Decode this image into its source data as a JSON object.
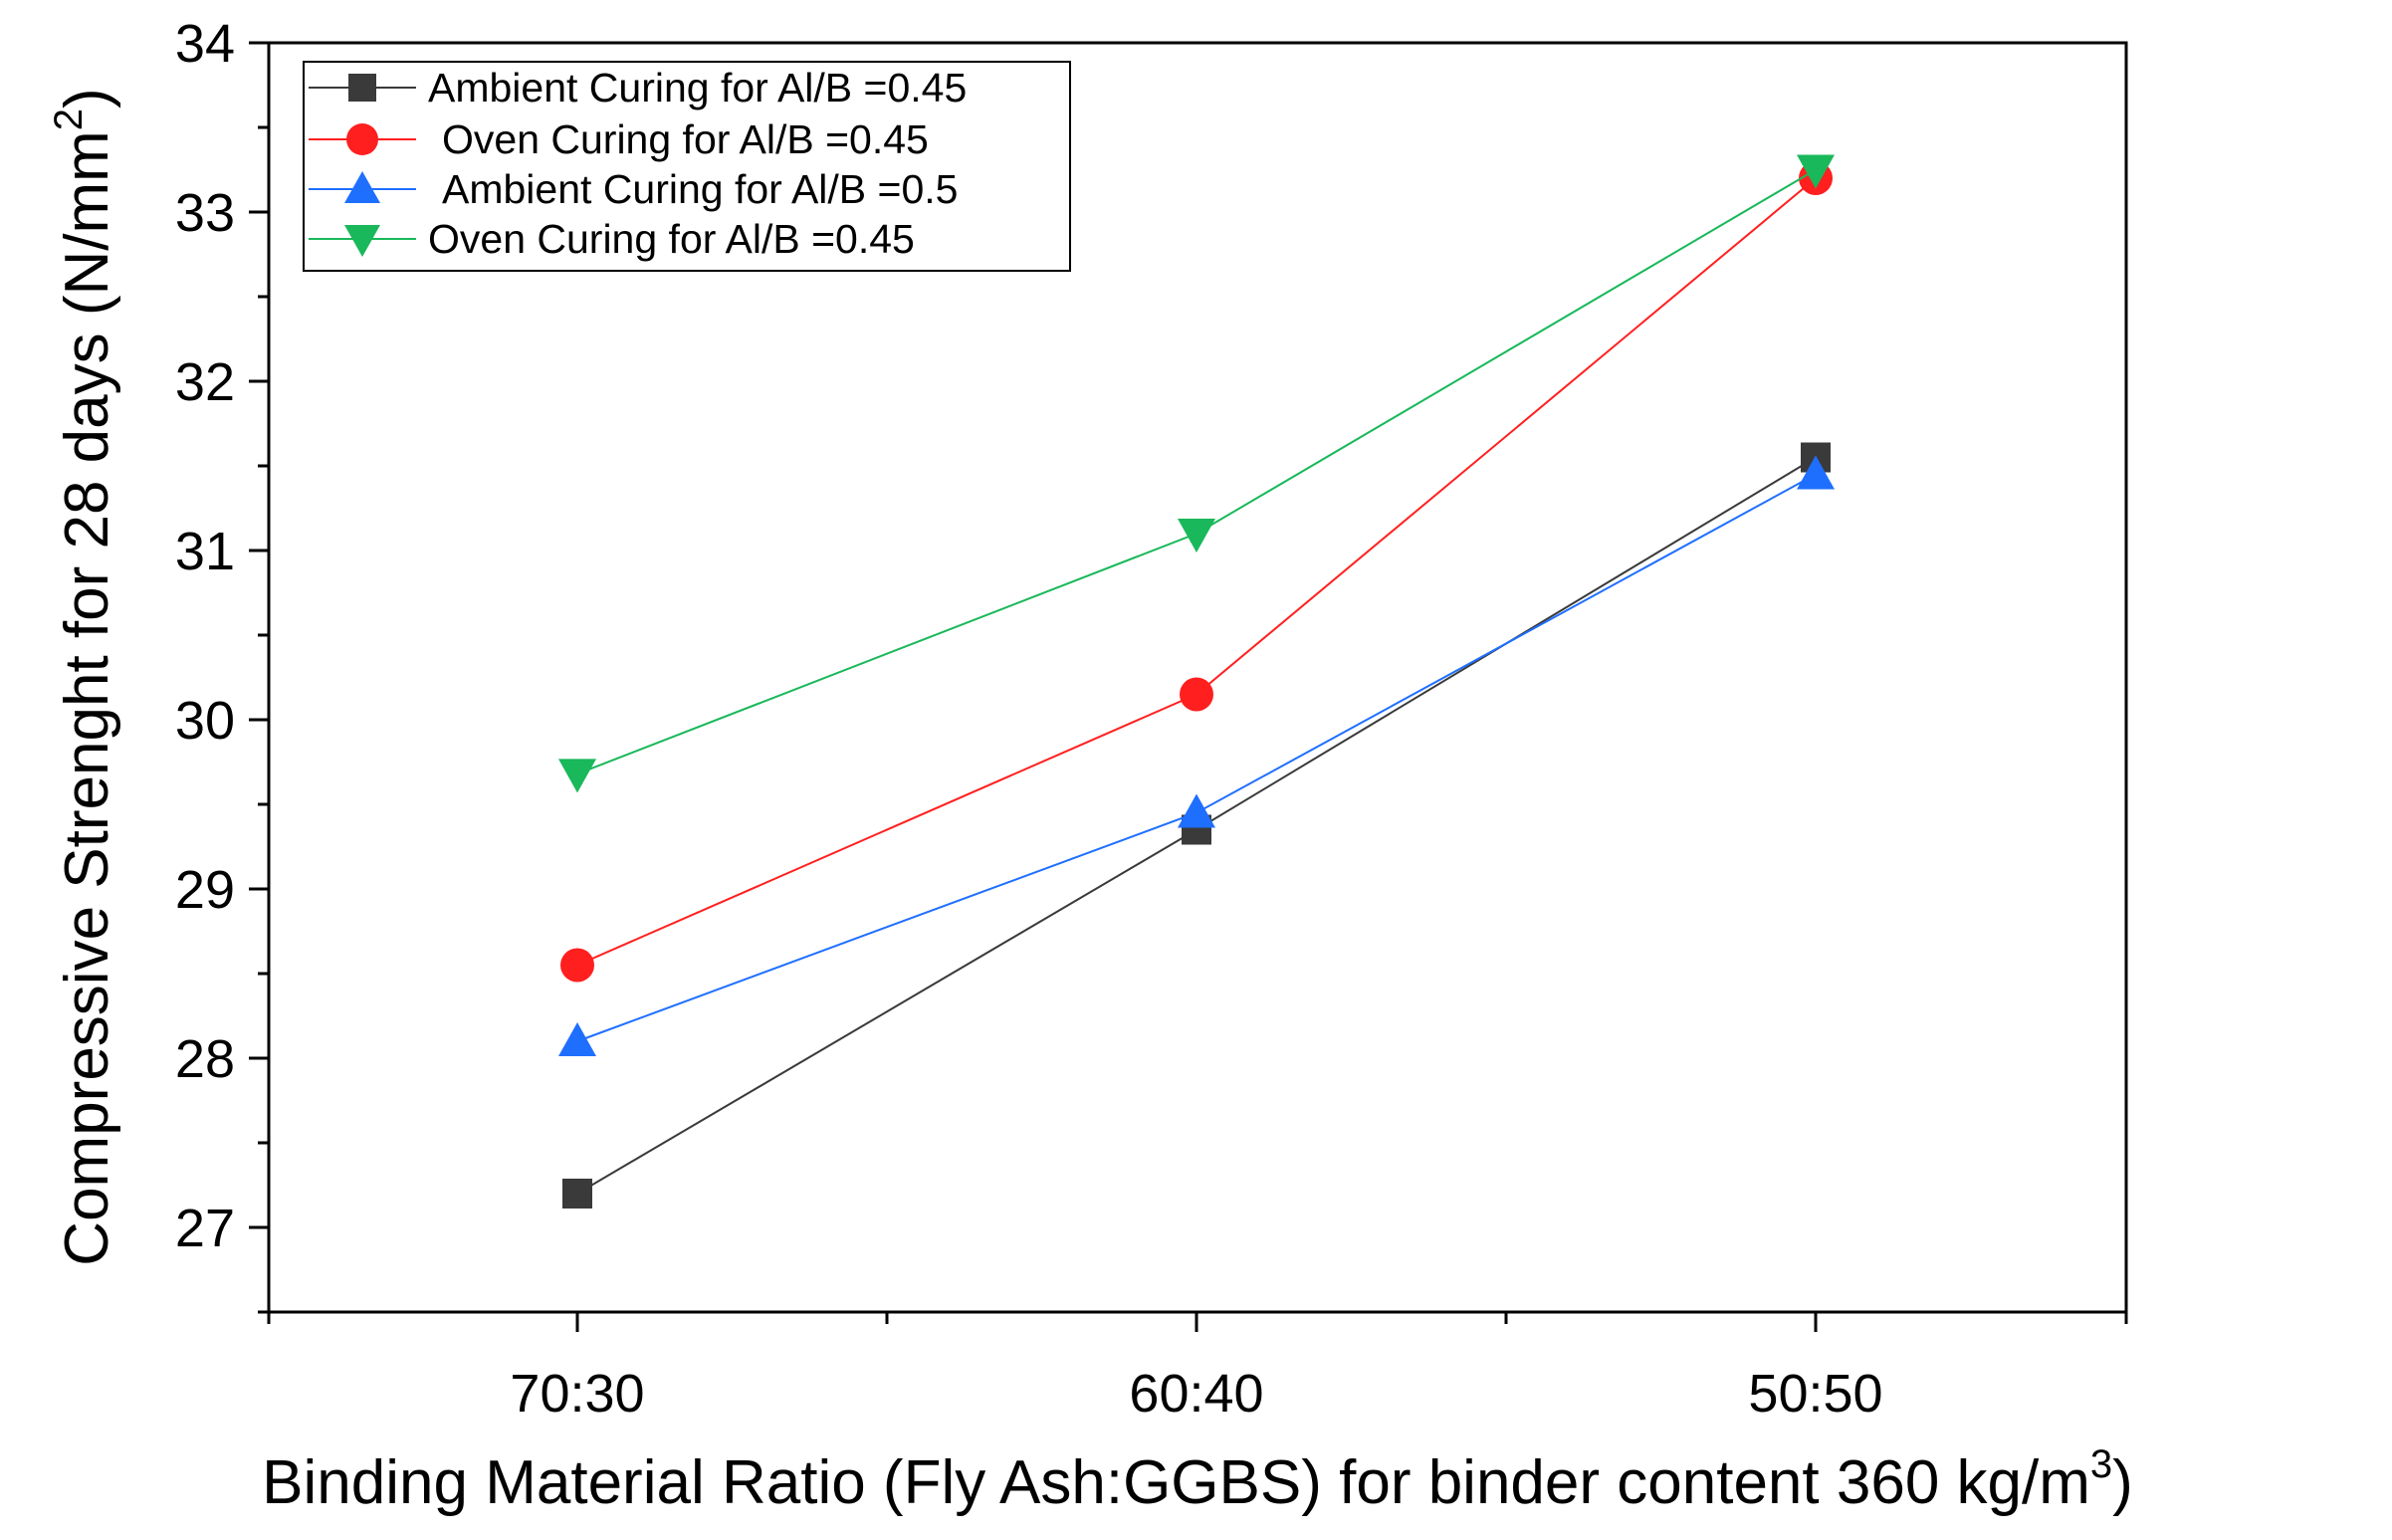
{
  "chart_data": {
    "type": "line",
    "title": "",
    "xlabel": "Binding Material Ratio (Fly Ash:GGBS) for binder content 360 kg/m",
    "xlabel_sup": "3",
    "xlabel_suffix": ")",
    "ylabel": "Compressive Strenght for 28 days (N/mm",
    "ylabel_sup": "2",
    "ylabel_suffix": ")",
    "categories": [
      "70:30",
      "60:40",
      "50:50"
    ],
    "ylim": [
      26.5,
      34
    ],
    "yticks": [
      27,
      28,
      29,
      30,
      31,
      32,
      33,
      34
    ],
    "legend_position": "top-left",
    "series": [
      {
        "name": "Ambient Curing for Al/B =0.45",
        "color": "#3a3a3a",
        "marker": "square",
        "values": [
          27.2,
          29.35,
          31.55
        ]
      },
      {
        "name": "Oven Curing for Al/B =0.45",
        "color": "#ff1f1f",
        "marker": "circle",
        "values": [
          28.55,
          30.15,
          33.2
        ]
      },
      {
        "name": "Ambient Curing for Al/B =0.5",
        "color": "#1f6fff",
        "marker": "triangle-up",
        "values": [
          28.1,
          29.45,
          31.45
        ]
      },
      {
        "name": "Oven Curing for Al/B =0.45",
        "color": "#19b85a",
        "marker": "triangle-down",
        "values": [
          29.68,
          31.1,
          33.25
        ]
      }
    ]
  }
}
